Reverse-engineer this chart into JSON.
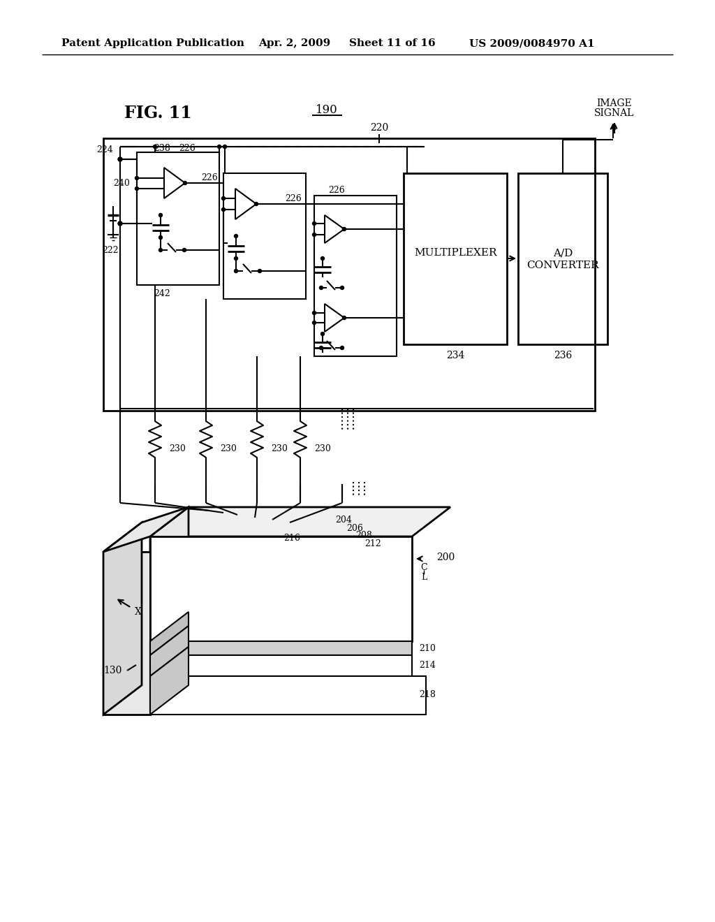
{
  "bg_color": "#ffffff",
  "header_text": "Patent Application Publication",
  "header_date": "Apr. 2, 2009",
  "header_sheet": "Sheet 11 of 16",
  "header_patent": "US 2009/0084970 A1",
  "fig_label": "FIG. 11",
  "label_190": "190",
  "label_220": "220",
  "label_222": "222",
  "label_224": "224",
  "label_238": "238",
  "label_226a": "226",
  "label_226b": "226",
  "label_226c": "226",
  "label_240": "240",
  "label_242": "242",
  "label_230": "230",
  "label_234": "234",
  "label_236": "236",
  "label_multiplexer": "MULTIPLEXER",
  "label_ad_line1": "A/D",
  "label_ad_line2": "CONVERTER",
  "label_image_signal_line1": "IMAGE",
  "label_image_signal_line2": "SIGNAL",
  "label_130": "130",
  "label_200": "200",
  "label_204": "204",
  "label_206": "206",
  "label_208": "208",
  "label_210": "210",
  "label_212": "212",
  "label_214": "214",
  "label_216": "216",
  "label_218": "218",
  "label_C": "C",
  "label_L": "L",
  "label_X": "X"
}
